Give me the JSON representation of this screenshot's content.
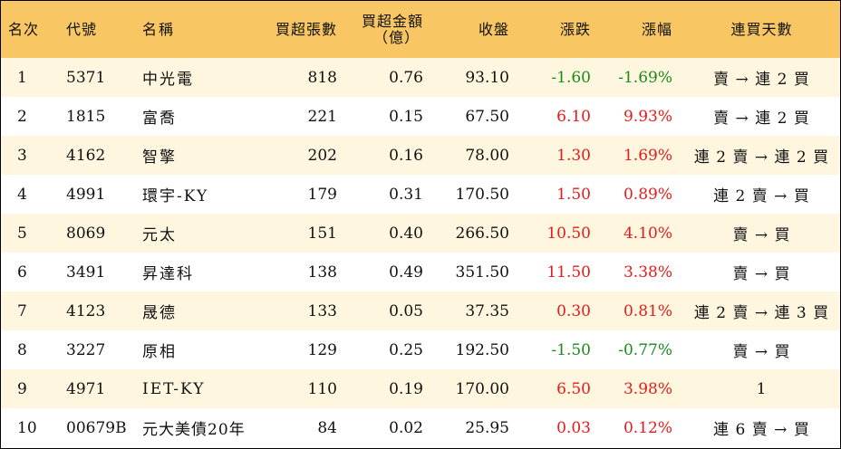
{
  "columns": {
    "rank": "名次",
    "code": "代號",
    "name": "名稱",
    "net_buy_lots": "買超張數",
    "net_buy_amount_line1": "買超金額",
    "net_buy_amount_line2": "（億）",
    "close": "收盤",
    "change": "漲跌",
    "change_pct": "漲幅",
    "streak": "連買天數"
  },
  "colors": {
    "header_bg": "#f8c663",
    "row_odd_bg": "#fef6df",
    "up": "#e31b1b",
    "down": "#1a8a1a"
  },
  "rows": [
    {
      "rank": "1",
      "code": "5371",
      "name": "中光電",
      "lots": "818",
      "amount": "0.76",
      "close": "93.10",
      "change": "-1.60",
      "pct": "-1.69%",
      "streak": "賣 → 連 2 買",
      "dir": "down"
    },
    {
      "rank": "2",
      "code": "1815",
      "name": "富喬",
      "lots": "221",
      "amount": "0.15",
      "close": "67.50",
      "change": "6.10",
      "pct": "9.93%",
      "streak": "賣 → 連 2 買",
      "dir": "up"
    },
    {
      "rank": "3",
      "code": "4162",
      "name": "智擎",
      "lots": "202",
      "amount": "0.16",
      "close": "78.00",
      "change": "1.30",
      "pct": "1.69%",
      "streak": "連 2 賣 → 連 2 買",
      "dir": "up"
    },
    {
      "rank": "4",
      "code": "4991",
      "name": "環宇-KY",
      "lots": "179",
      "amount": "0.31",
      "close": "170.50",
      "change": "1.50",
      "pct": "0.89%",
      "streak": "連 2 賣 → 買",
      "dir": "up"
    },
    {
      "rank": "5",
      "code": "8069",
      "name": "元太",
      "lots": "151",
      "amount": "0.40",
      "close": "266.50",
      "change": "10.50",
      "pct": "4.10%",
      "streak": "賣 → 買",
      "dir": "up"
    },
    {
      "rank": "6",
      "code": "3491",
      "name": "昇達科",
      "lots": "138",
      "amount": "0.49",
      "close": "351.50",
      "change": "11.50",
      "pct": "3.38%",
      "streak": "賣 → 買",
      "dir": "up"
    },
    {
      "rank": "7",
      "code": "4123",
      "name": "晟德",
      "lots": "133",
      "amount": "0.05",
      "close": "37.35",
      "change": "0.30",
      "pct": "0.81%",
      "streak": "連 2 賣 → 連 3 買",
      "dir": "up"
    },
    {
      "rank": "8",
      "code": "3227",
      "name": "原相",
      "lots": "129",
      "amount": "0.25",
      "close": "192.50",
      "change": "-1.50",
      "pct": "-0.77%",
      "streak": "賣 → 買",
      "dir": "down"
    },
    {
      "rank": "9",
      "code": "4971",
      "name": "IET-KY",
      "lots": "110",
      "amount": "0.19",
      "close": "170.00",
      "change": "6.50",
      "pct": "3.98%",
      "streak": "1",
      "dir": "up"
    },
    {
      "rank": "10",
      "code": "00679B",
      "name": "元大美債20年",
      "lots": "84",
      "amount": "0.02",
      "close": "25.95",
      "change": "0.03",
      "pct": "0.12%",
      "streak": "連 6 賣 → 買",
      "dir": "up"
    }
  ]
}
